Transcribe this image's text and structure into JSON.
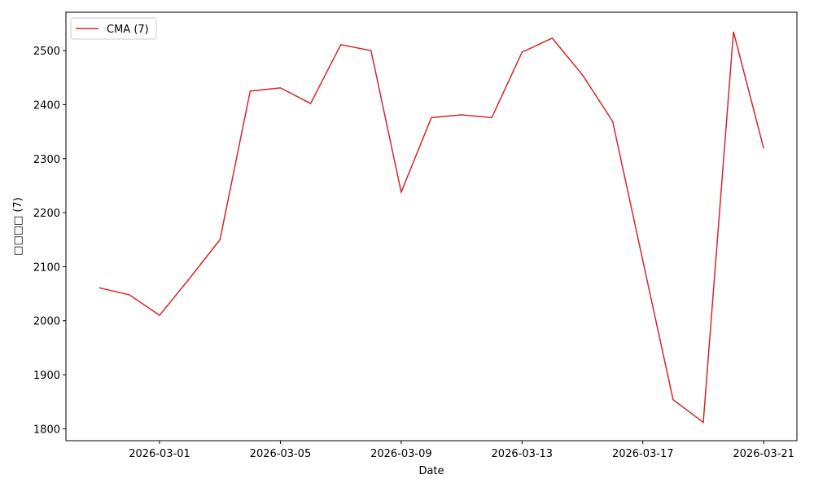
{
  "chart_data": {
    "type": "line",
    "x_label": "Date",
    "y_label": "□□□□ (7)",
    "x": [
      "2026-02-27",
      "2026-02-28",
      "2026-03-01",
      "2026-03-02",
      "2026-03-03",
      "2026-03-04",
      "2026-03-05",
      "2026-03-06",
      "2026-03-07",
      "2026-03-08",
      "2026-03-09",
      "2026-03-10",
      "2026-03-11",
      "2026-03-12",
      "2026-03-13",
      "2026-03-14",
      "2026-03-15",
      "2026-03-16",
      "2026-03-17",
      "2026-03-18",
      "2026-03-19",
      "2026-03-20",
      "2026-03-21"
    ],
    "series": [
      {
        "name": "CMA (7)",
        "color": "#d62728",
        "values": [
          2061,
          2048,
          2010,
          2079,
          2150,
          2425,
          2431,
          2402,
          2511,
          2500,
          2238,
          2376,
          2381,
          2376,
          2497,
          2523,
          2455,
          2369,
          2111,
          1854,
          1812,
          2535,
          2319
        ]
      }
    ],
    "xlim": [
      "2026-02-25T21:36:00Z",
      "2026-03-22T02:24:00Z"
    ],
    "xticks": [
      "2026-03-01",
      "2026-03-05",
      "2026-03-09",
      "2026-03-13",
      "2026-03-17",
      "2026-03-21"
    ],
    "ylim": [
      1778,
      2571
    ],
    "yticks": [
      1800,
      1900,
      2000,
      2100,
      2200,
      2300,
      2400,
      2500
    ],
    "legend": "upper left",
    "grid": false
  }
}
